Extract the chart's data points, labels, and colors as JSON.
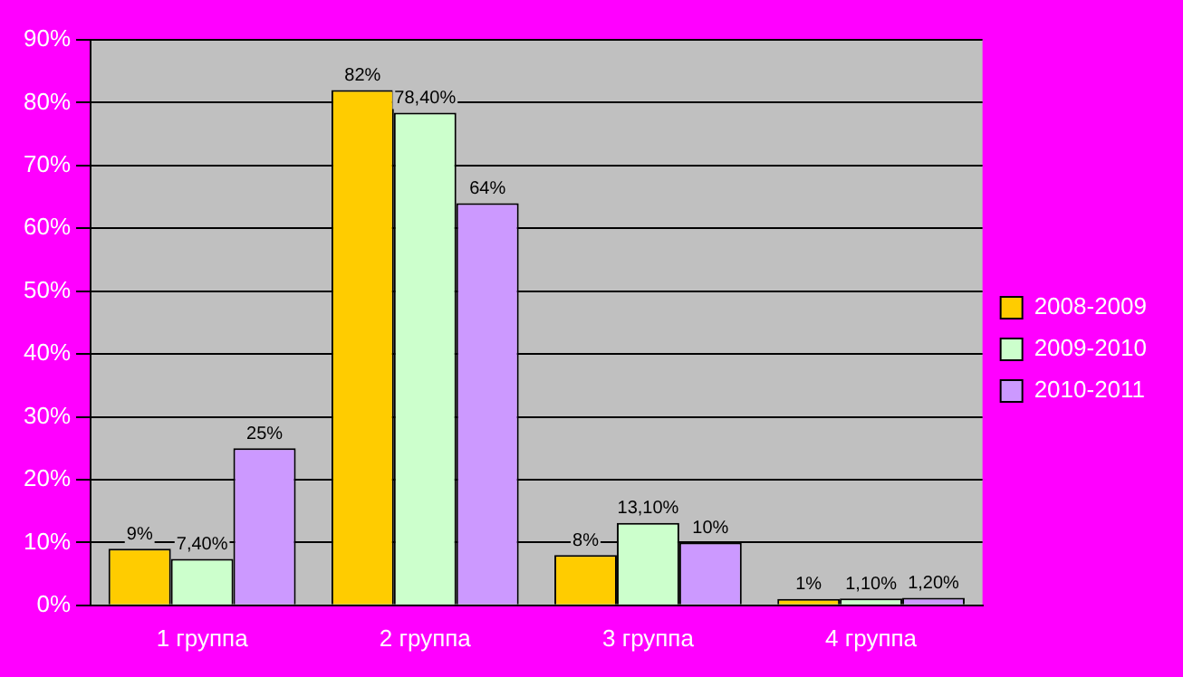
{
  "chart_data": {
    "type": "bar",
    "categories": [
      "1 группа",
      "2 группа",
      "3 группа",
      "4 группа"
    ],
    "series": [
      {
        "name": "2008-2009",
        "color": "#ffcc00",
        "values": [
          9,
          82,
          8,
          1
        ],
        "value_labels": [
          "9%",
          "82%",
          "8%",
          "1%"
        ]
      },
      {
        "name": "2009-2010",
        "color": "#ccffcc",
        "values": [
          7.4,
          78.4,
          13.1,
          1.1
        ],
        "value_labels": [
          "7,40%",
          "78,40%",
          "13,10%",
          "1,10%"
        ]
      },
      {
        "name": "2010-2011",
        "color": "#cc99ff",
        "values": [
          25,
          64,
          10,
          1.2
        ],
        "value_labels": [
          "25%",
          "64%",
          "10%",
          "1,20%"
        ]
      }
    ],
    "ylim": [
      0,
      90
    ],
    "yticks": [
      {
        "value": 0,
        "label": "0%"
      },
      {
        "value": 10,
        "label": "10%"
      },
      {
        "value": 20,
        "label": "20%"
      },
      {
        "value": 30,
        "label": "30%"
      },
      {
        "value": 40,
        "label": "40%"
      },
      {
        "value": 50,
        "label": "50%"
      },
      {
        "value": 60,
        "label": "60%"
      },
      {
        "value": 70,
        "label": "70%"
      },
      {
        "value": 80,
        "label": "80%"
      },
      {
        "value": 90,
        "label": "90%"
      }
    ],
    "grid": "y",
    "legend": "right"
  }
}
